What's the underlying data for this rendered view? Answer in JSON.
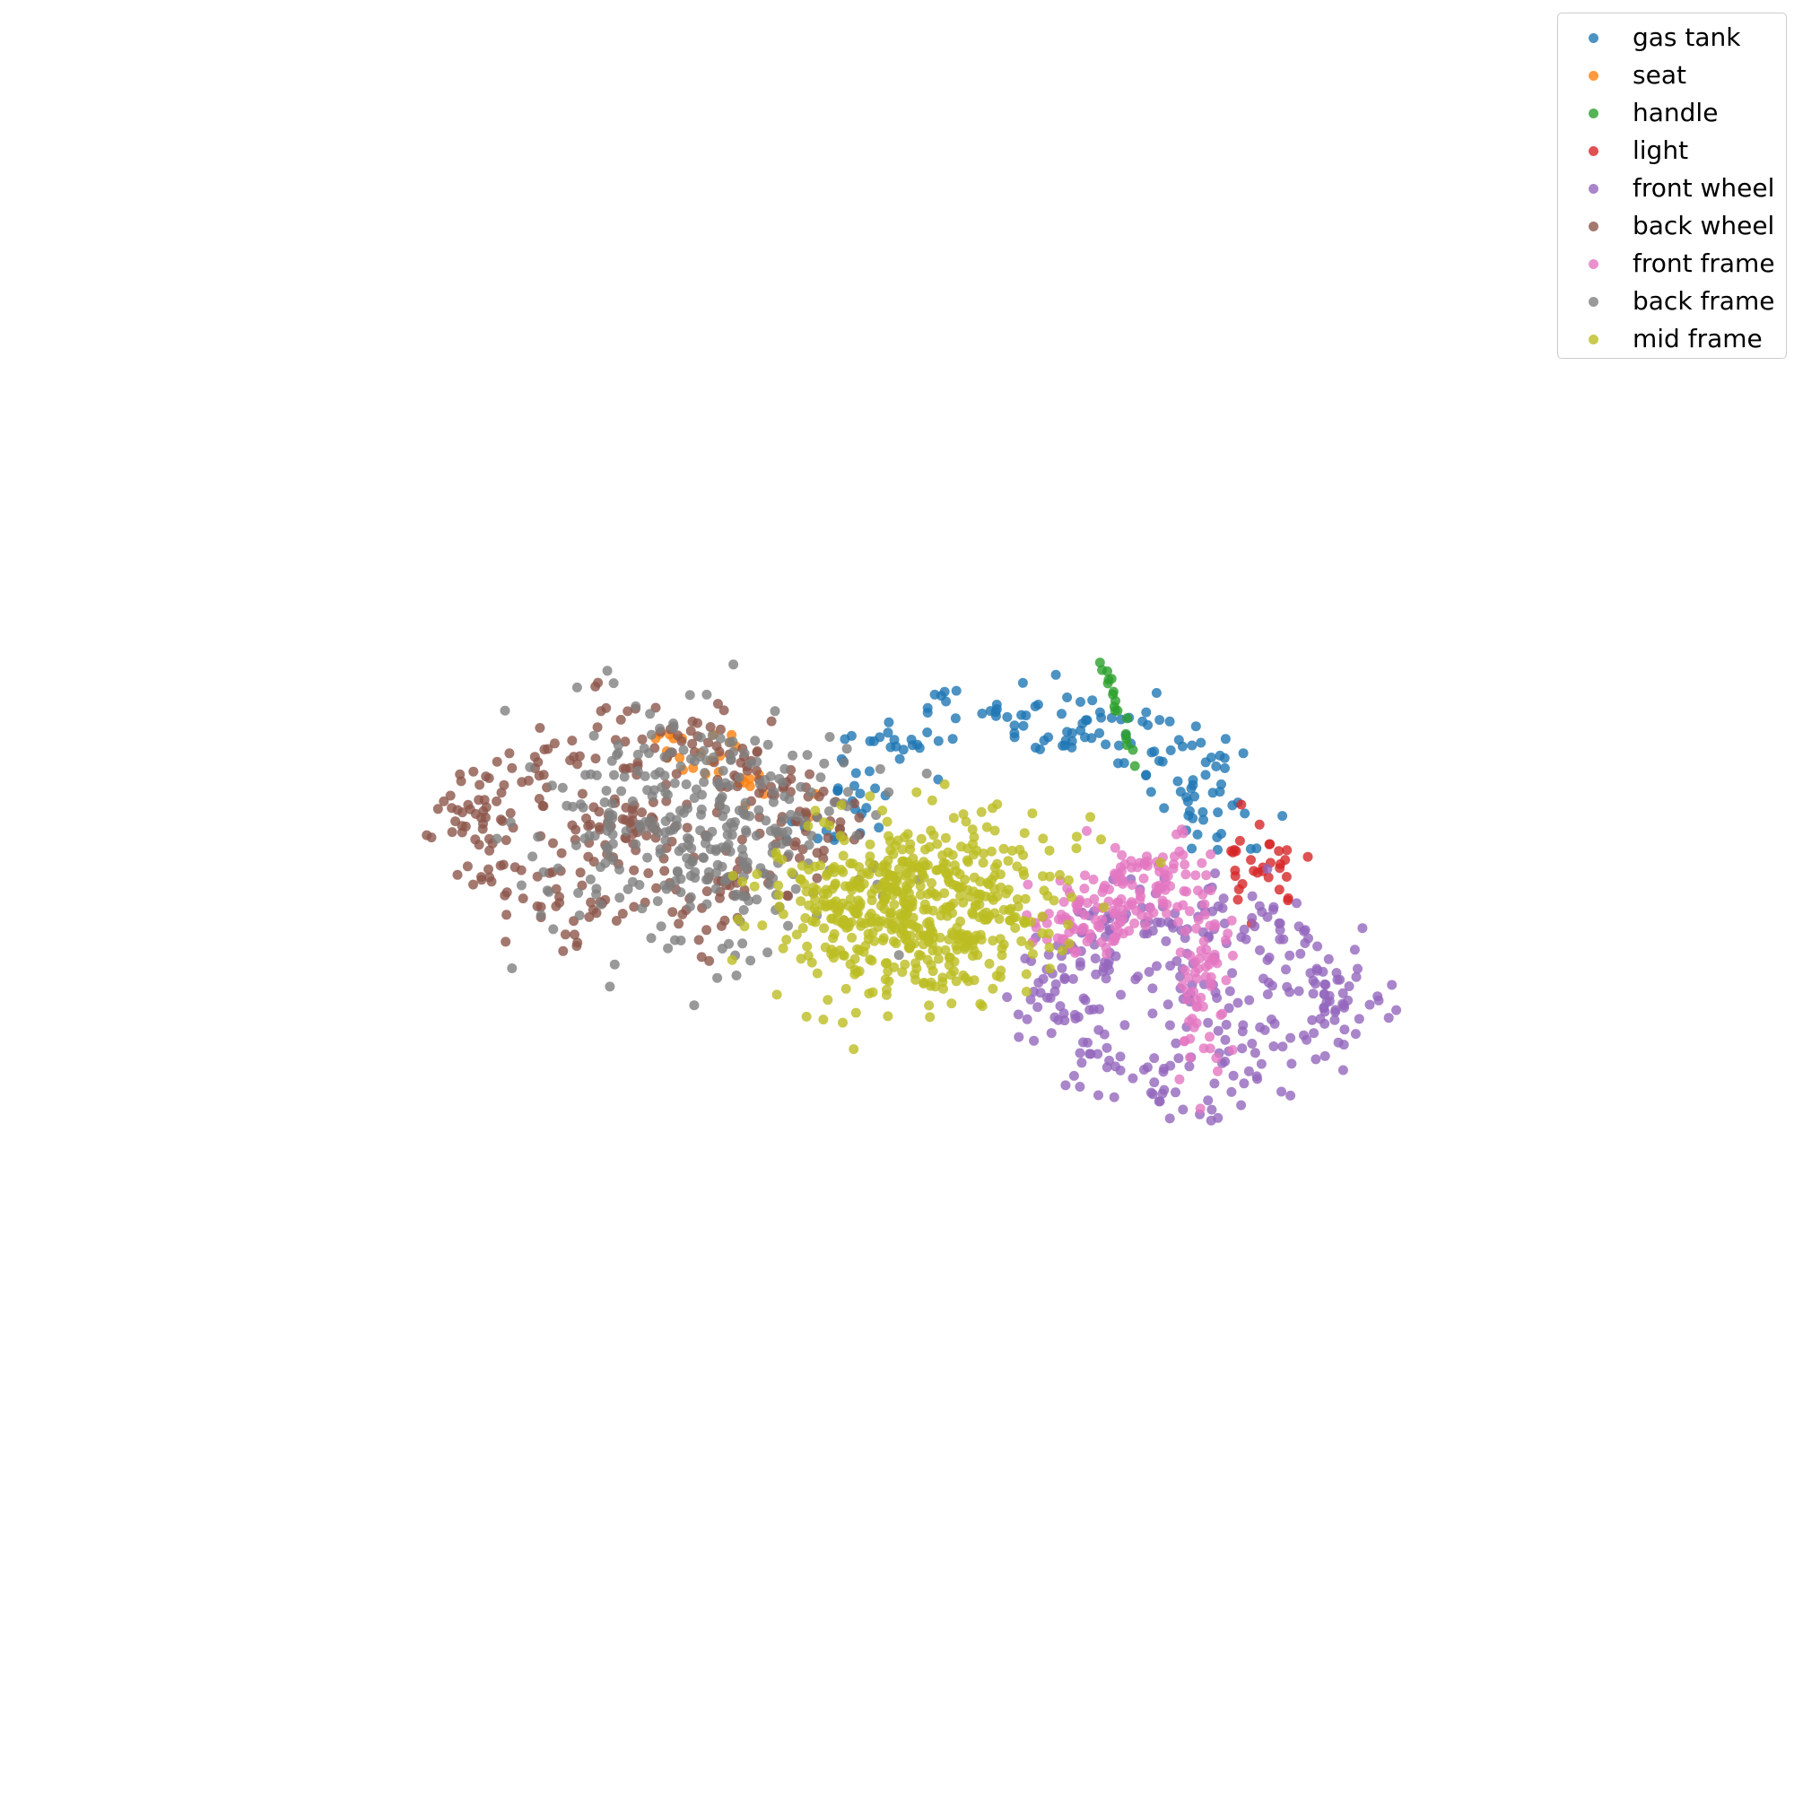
{
  "chart_data": {
    "type": "scatter",
    "title": "",
    "xlabel": "",
    "ylabel": "",
    "axes_visible": false,
    "grid": false,
    "legend_placement": "top-right",
    "marker_alpha": 0.8,
    "xlim": [
      -1,
      1
    ],
    "ylim": [
      -1,
      1
    ],
    "series": [
      {
        "name": "gas tank",
        "color": "#1f77b4",
        "shape": "arch",
        "cx": 0.14,
        "cy": 0.05,
        "rx": 0.23,
        "ry": 0.15,
        "width": 0.04,
        "start_deg": 8,
        "end_deg": 172,
        "count": 160,
        "seed": 11
      },
      {
        "name": "seat",
        "color": "#ff7f0e",
        "shape": "band",
        "x0": -0.24,
        "y0": 0.18,
        "x1": -0.11,
        "y1": 0.08,
        "width": 0.04,
        "count": 30,
        "seed": 12
      },
      {
        "name": "handle",
        "color": "#2ca02c",
        "shape": "band",
        "x0": 0.23,
        "y0": 0.26,
        "x1": 0.27,
        "y1": 0.14,
        "width": 0.006,
        "count": 18,
        "seed": 13
      },
      {
        "name": "light",
        "color": "#d62728",
        "shape": "blob",
        "cx": 0.41,
        "cy": 0.03,
        "rx": 0.04,
        "ry": 0.04,
        "count": 32,
        "seed": 14
      },
      {
        "name": "front wheel",
        "color": "#9467bd",
        "shape": "ring",
        "cx": 0.33,
        "cy": -0.11,
        "rx": 0.16,
        "ry": 0.095,
        "width": 0.028,
        "count": 320,
        "seed": 15
      },
      {
        "name": "back wheel",
        "color": "#8c564b",
        "shape": "ring",
        "cx": -0.29,
        "cy": 0.08,
        "rx": 0.185,
        "ry": 0.095,
        "width": 0.03,
        "count": 330,
        "seed": 16
      },
      {
        "name": "front frame",
        "color": "#e377c2",
        "shape": "multi",
        "parts": [
          {
            "cx": 0.28,
            "cy": 0.02,
            "rx": 0.07,
            "ry": 0.045
          },
          {
            "cx": 0.34,
            "cy": -0.09,
            "rx": 0.025,
            "ry": 0.1
          },
          {
            "cx": 0.21,
            "cy": -0.02,
            "rx": 0.06,
            "ry": 0.035
          }
        ],
        "count": 220,
        "seed": 17
      },
      {
        "name": "back frame",
        "color": "#7f7f7f",
        "shape": "blob",
        "cx": -0.22,
        "cy": 0.07,
        "rx": 0.17,
        "ry": 0.12,
        "count": 330,
        "seed": 18
      },
      {
        "name": "mid frame",
        "color": "#bcbd22",
        "shape": "blob",
        "cx": 0.02,
        "cy": -0.01,
        "rx": 0.15,
        "ry": 0.095,
        "count": 560,
        "seed": 19
      }
    ]
  }
}
